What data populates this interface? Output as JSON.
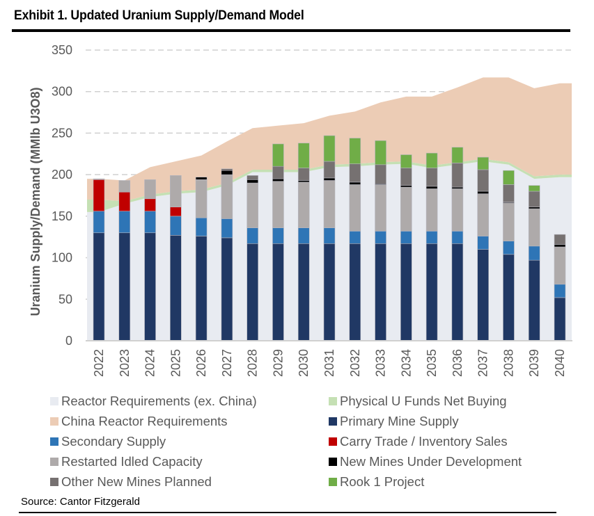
{
  "header": {
    "title": "Exhibit 1. Updated Uranium Supply/Demand Model"
  },
  "footer": {
    "source": "Source: Cantor Fitzgerald"
  },
  "chart_data": {
    "type": "bar",
    "subtype": "stacked bar with stacked area",
    "title": "Exhibit 1. Updated Uranium Supply/Demand Model",
    "xlabel": "",
    "ylabel": "Uranium Supply/Demand (MMlb U3O8)",
    "ylim": [
      0,
      350
    ],
    "yticks": [
      0,
      50,
      100,
      150,
      200,
      250,
      300,
      350
    ],
    "grid": "horizontal dashed",
    "legend_position": "bottom",
    "categories": [
      "2022",
      "2023",
      "2024",
      "2025",
      "2026",
      "2027",
      "2028",
      "2029",
      "2030",
      "2031",
      "2032",
      "2033",
      "2034",
      "2035",
      "2036",
      "2037",
      "2038",
      "2039",
      "2040"
    ],
    "area_series": [
      {
        "name": "Reactor Requirements (ex. China)",
        "color": "#e8ebf1",
        "values": [
          155,
          165,
          173,
          177,
          179,
          187,
          203,
          203,
          203,
          209,
          210,
          212,
          213,
          208,
          212,
          216,
          212,
          195,
          197
        ]
      },
      {
        "name": "Physical U Funds Net Buying",
        "color": "#c5e0b4",
        "values": [
          15,
          3,
          3,
          3,
          3,
          3,
          3,
          3,
          3,
          3,
          3,
          3,
          3,
          3,
          3,
          3,
          3,
          3,
          3
        ]
      },
      {
        "name": "China Reactor Requirements",
        "color": "#ecccb5",
        "values": [
          25,
          25,
          33,
          36,
          41,
          50,
          50,
          53,
          56,
          59,
          63,
          72,
          78,
          83,
          90,
          98,
          102,
          106,
          110
        ]
      }
    ],
    "bar_series": [
      {
        "name": "Primary Mine Supply",
        "color": "#203864",
        "values": [
          130,
          130,
          130,
          127,
          126,
          124,
          117,
          117,
          117,
          117,
          117,
          117,
          117,
          117,
          117,
          110,
          104,
          97,
          52
        ]
      },
      {
        "name": "Secondary Supply",
        "color": "#2e75b6",
        "values": [
          26,
          26,
          26,
          23,
          22,
          23,
          19,
          19,
          19,
          19,
          15,
          15,
          15,
          15,
          15,
          16,
          16,
          17,
          16
        ]
      },
      {
        "name": "Carry Trade / Inventory Sales",
        "color": "#c00000",
        "values": [
          38,
          23,
          15,
          11,
          0,
          0,
          0,
          0,
          0,
          0,
          0,
          0,
          0,
          0,
          0,
          0,
          0,
          0,
          0
        ]
      },
      {
        "name": "Restarted Idled Capacity",
        "color": "#aeaaaa",
        "values": [
          1,
          14,
          23,
          38,
          46,
          53,
          54,
          56,
          55,
          57,
          56,
          56,
          53,
          51,
          51,
          51,
          46,
          45,
          45
        ]
      },
      {
        "name": "New Mines Under Development",
        "color": "#000000",
        "values": [
          0,
          0,
          0,
          0,
          3,
          5,
          4,
          3,
          2,
          3,
          3,
          1,
          2,
          3,
          2,
          3,
          1,
          2,
          3
        ]
      },
      {
        "name": "Other New Mines Planned",
        "color": "#767171",
        "values": [
          0,
          0,
          0,
          0,
          0,
          2,
          5,
          15,
          15,
          20,
          22,
          23,
          21,
          22,
          29,
          26,
          21,
          19,
          12
        ]
      },
      {
        "name": "Rook 1 Project",
        "color": "#70ad47",
        "values": [
          0,
          0,
          0,
          0,
          0,
          0,
          0,
          27,
          30,
          31,
          31,
          29,
          16,
          18,
          19,
          15,
          17,
          7,
          0
        ]
      }
    ],
    "legend": [
      {
        "label": "Reactor Requirements (ex. China)",
        "color": "#e8ebf1"
      },
      {
        "label": "Physical U Funds Net Buying",
        "color": "#c5e0b4"
      },
      {
        "label": "China Reactor Requirements",
        "color": "#ecccb5"
      },
      {
        "label": "Primary Mine Supply",
        "color": "#203864"
      },
      {
        "label": "Secondary Supply",
        "color": "#2e75b6"
      },
      {
        "label": "Carry Trade / Inventory Sales",
        "color": "#c00000"
      },
      {
        "label": "Restarted Idled Capacity",
        "color": "#aeaaaa"
      },
      {
        "label": "New Mines Under Development",
        "color": "#000000"
      },
      {
        "label": "Other New Mines Planned",
        "color": "#767171"
      },
      {
        "label": "Rook 1 Project",
        "color": "#70ad47"
      }
    ]
  }
}
